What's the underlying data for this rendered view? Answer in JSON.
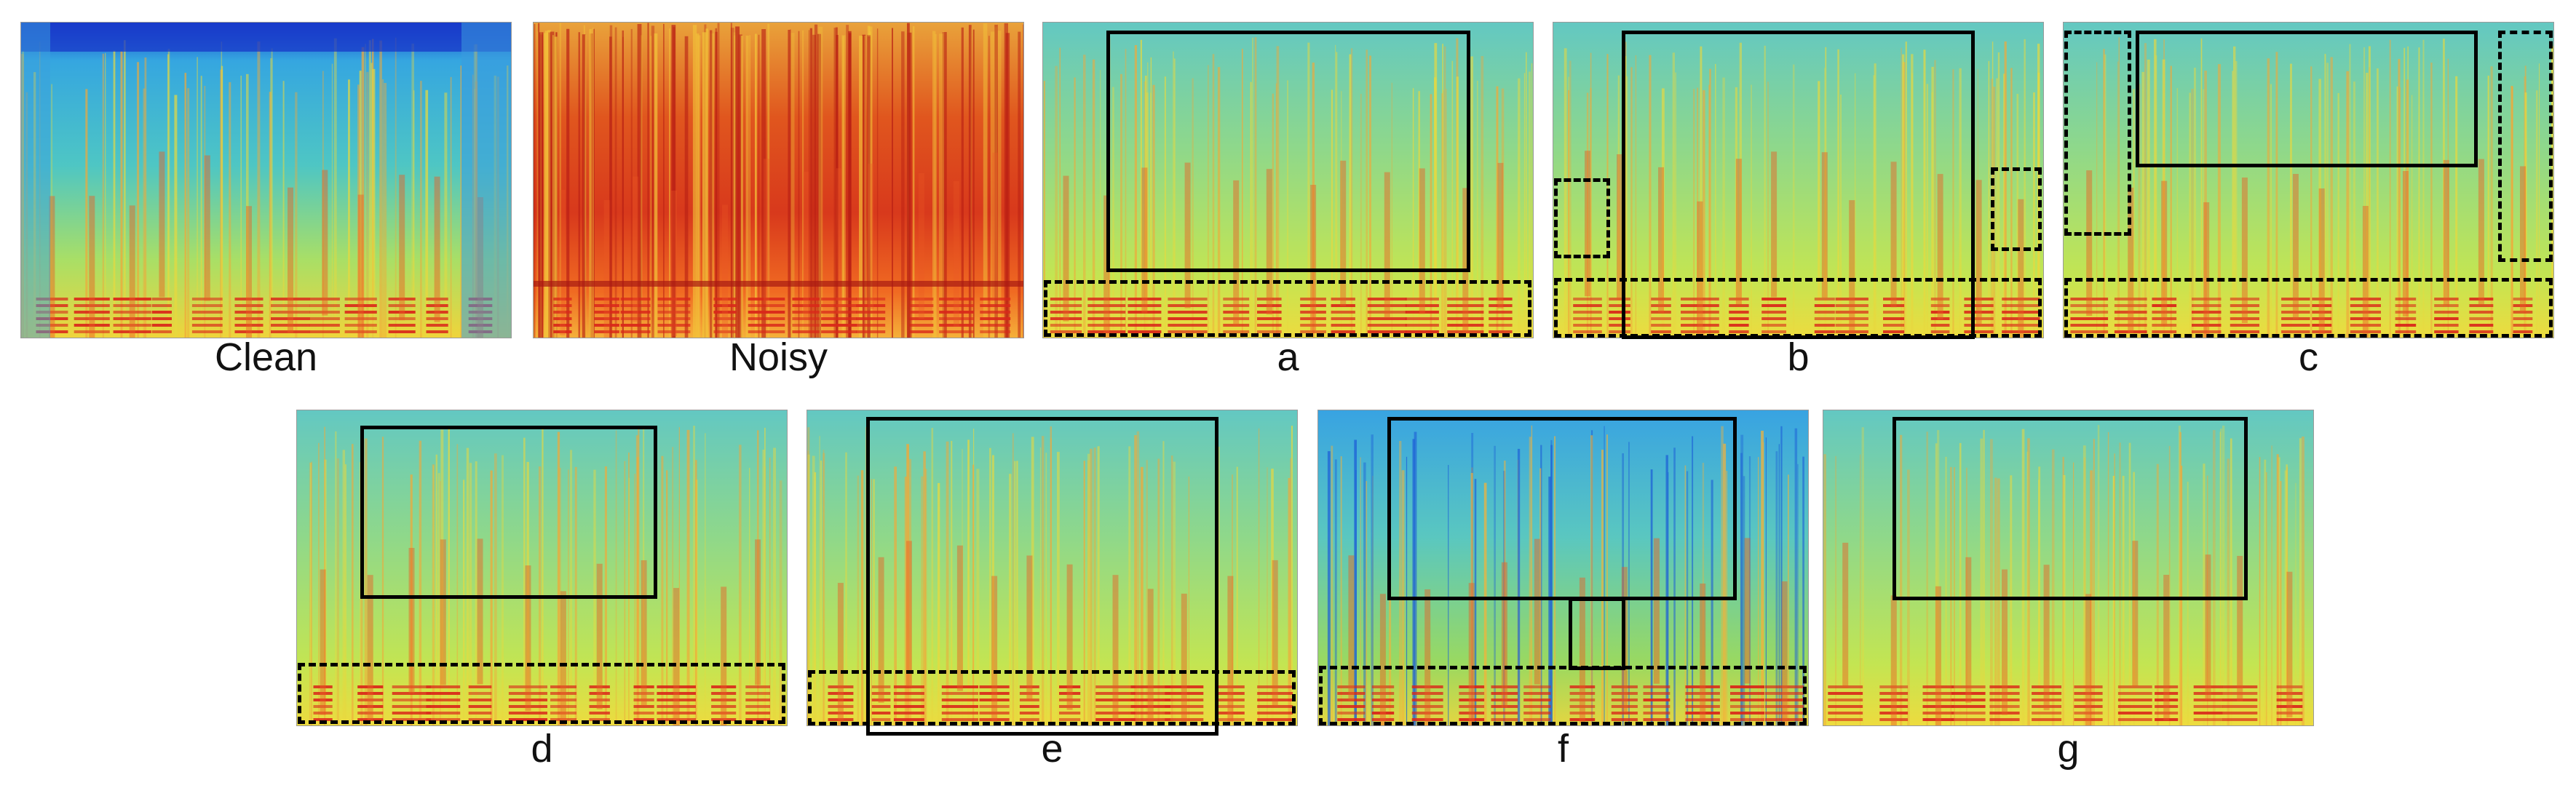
{
  "figure": {
    "panels": [
      {
        "id": "clean",
        "label": "Clean",
        "style": "clean"
      },
      {
        "id": "noisy",
        "label": "Noisy",
        "style": "noisy"
      },
      {
        "id": "a",
        "label": "a",
        "style": "enh"
      },
      {
        "id": "b",
        "label": "b",
        "style": "enh"
      },
      {
        "id": "c",
        "label": "c",
        "style": "enh"
      },
      {
        "id": "d",
        "label": "d",
        "style": "enh"
      },
      {
        "id": "e",
        "label": "e",
        "style": "enh"
      },
      {
        "id": "f",
        "label": "f",
        "style": "blue"
      },
      {
        "id": "g",
        "label": "g",
        "style": "enh"
      }
    ],
    "colors": {
      "background_cool": "#52c9c0",
      "background_mid": "#b7e25a",
      "speech_hot": "#e8421a",
      "noise_hot": "#d8321a",
      "edge_blue": "#1e4fd8",
      "annotation": "#000000"
    }
  }
}
